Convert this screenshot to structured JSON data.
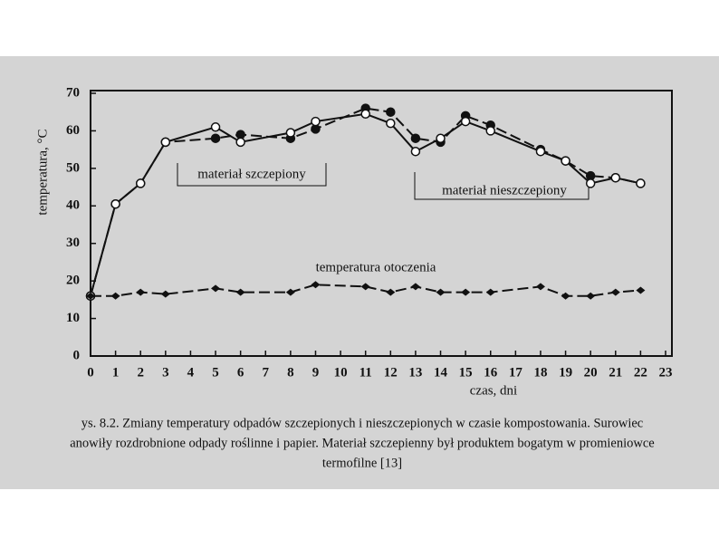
{
  "chart_data": {
    "type": "line",
    "y_label": "temperatura, °C",
    "x_label": "czas, dni",
    "caption": [
      "ys. 8.2. Zmiany temperatury odpadów szczepionych i nieszczepionych w czasie kompostowania. Surowiec",
      "anowiły rozdrobnione odpady roślinne i papier. Materiał szczepienny był produktem bogatym w promieniowce",
      "termofilne [13]"
    ],
    "x": [
      0,
      1,
      2,
      3,
      5,
      6,
      8,
      9,
      11,
      12,
      13,
      14,
      15,
      16,
      18,
      19,
      20,
      21,
      22
    ],
    "series": [
      {
        "name": "materiał szczepiony",
        "color": "#111",
        "marker": "filled",
        "dashed": true,
        "values": [
          16,
          40.5,
          46,
          57,
          58,
          59,
          58,
          60.5,
          66,
          65,
          58,
          57,
          64,
          61.5,
          55,
          52,
          48,
          47.5,
          46
        ]
      },
      {
        "name": "materiał nieszczepiony",
        "color": "#111",
        "marker": "open",
        "dashed": false,
        "values": [
          16,
          40.5,
          46,
          57,
          61,
          57,
          59.5,
          62.5,
          64.5,
          62,
          54.5,
          58,
          62.5,
          60,
          54.5,
          52,
          46,
          47.5,
          46
        ]
      },
      {
        "name": "temperatura otoczenia",
        "color": "#111",
        "marker": "diamond",
        "dashed": true,
        "values": [
          16,
          16,
          17,
          16.5,
          18,
          17,
          17,
          19,
          18.5,
          17,
          18.5,
          17,
          17,
          17,
          18.5,
          16,
          16,
          17,
          17.5
        ]
      }
    ],
    "xlim": [
      0,
      23
    ],
    "xticks": [
      0,
      1,
      2,
      3,
      4,
      5,
      6,
      7,
      8,
      9,
      10,
      11,
      12,
      13,
      14,
      15,
      16,
      17,
      18,
      19,
      20,
      21,
      22,
      23
    ],
    "ylim": [
      0,
      70
    ],
    "yticks": [
      0,
      10,
      20,
      30,
      40,
      50,
      60,
      70
    ]
  }
}
